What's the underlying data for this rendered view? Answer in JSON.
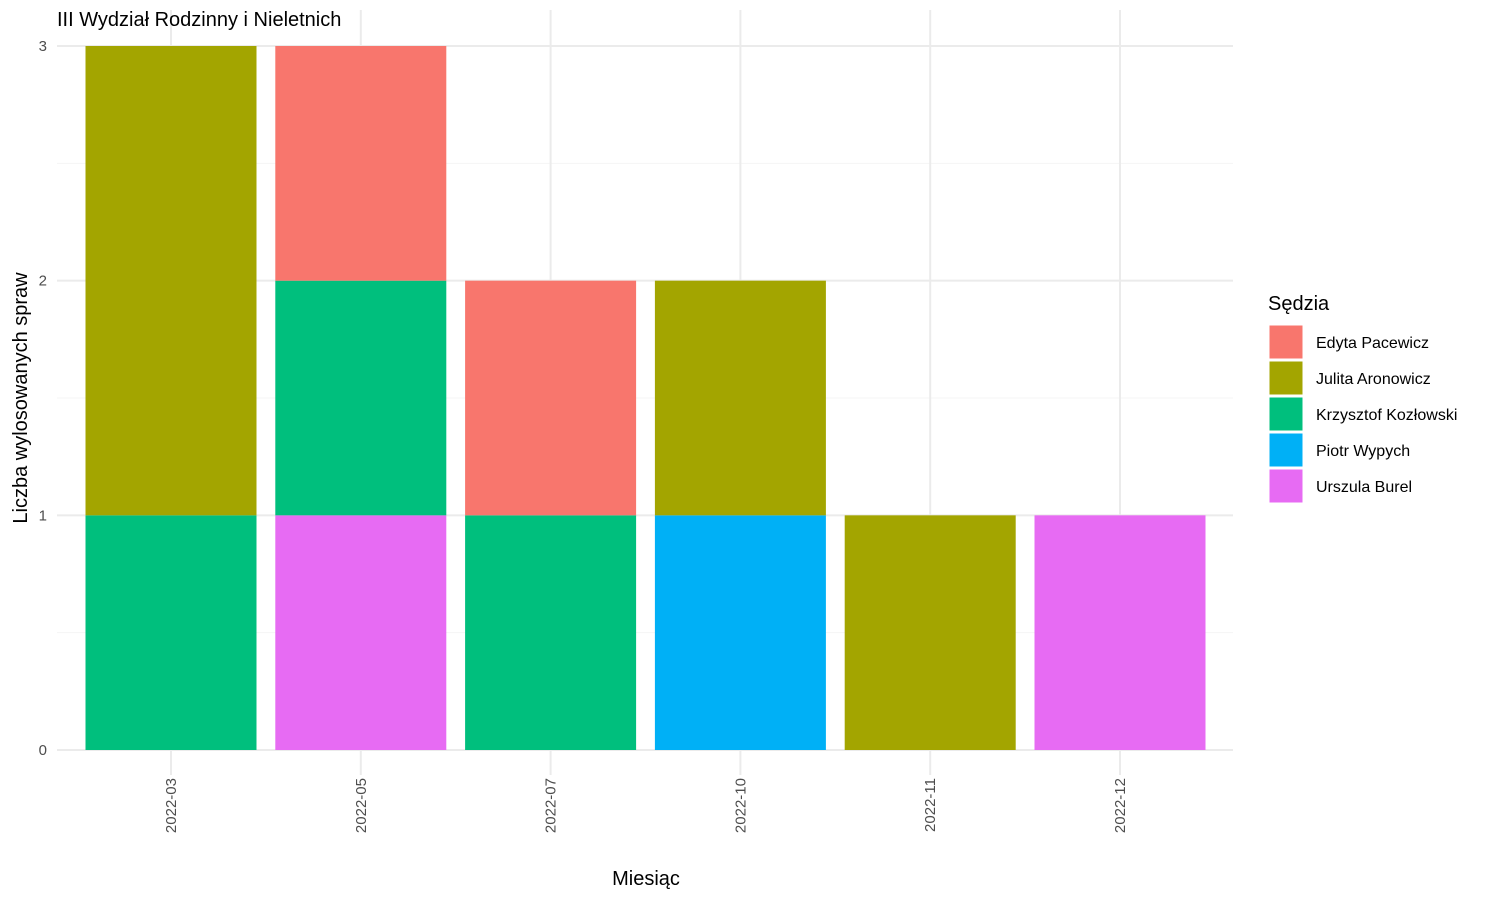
{
  "chart_data": {
    "type": "bar",
    "stacked": true,
    "title": "III Wydział Rodzinny i Nieletnich",
    "xlabel": "Miesiąc",
    "ylabel": "Liczba wylosowanych spraw",
    "ylim": [
      0,
      3
    ],
    "yticks": [
      "0",
      "1",
      "2",
      "3"
    ],
    "grid": true,
    "legend_title": "Sędzia",
    "legend_position": "right",
    "categories": [
      "2022-03",
      "2022-05",
      "2022-07",
      "2022-10",
      "2022-11",
      "2022-12"
    ],
    "series": [
      {
        "name": "Edyta Pacewicz",
        "color": "#F8766D",
        "values": [
          0,
          1,
          1,
          0,
          0,
          0
        ]
      },
      {
        "name": "Julita Aronowicz",
        "color": "#A3A500",
        "values": [
          2,
          0,
          0,
          1,
          1,
          0
        ]
      },
      {
        "name": "Krzysztof Kozłowski",
        "color": "#00BF7D",
        "values": [
          1,
          1,
          1,
          0,
          0,
          0
        ]
      },
      {
        "name": "Piotr Wypych",
        "color": "#00B0F6",
        "values": [
          0,
          0,
          0,
          1,
          0,
          0
        ]
      },
      {
        "name": "Urszula Burel",
        "color": "#E76BF3",
        "values": [
          0,
          1,
          0,
          0,
          0,
          1
        ]
      }
    ]
  }
}
